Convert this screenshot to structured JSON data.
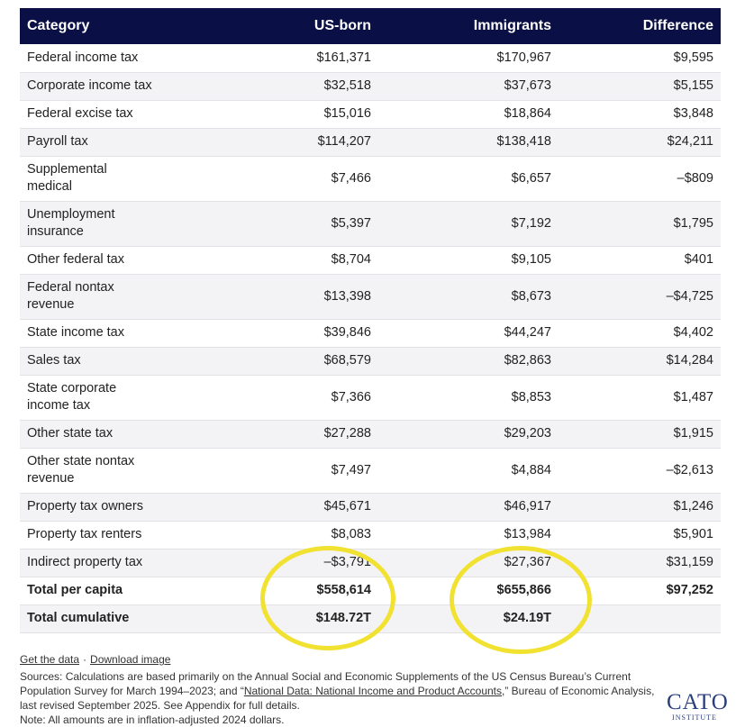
{
  "table": {
    "headers": [
      "Category",
      "US-born",
      "Immigrants",
      "Difference"
    ],
    "rows": [
      {
        "category": "Federal income tax",
        "us_born": "$161,371",
        "immigrants": "$170,967",
        "difference": "$9,595"
      },
      {
        "category": "Corporate income tax",
        "us_born": "$32,518",
        "immigrants": "$37,673",
        "difference": "$5,155"
      },
      {
        "category": "Federal excise tax",
        "us_born": "$15,016",
        "immigrants": "$18,864",
        "difference": "$3,848"
      },
      {
        "category": "Payroll tax",
        "us_born": "$114,207",
        "immigrants": "$138,418",
        "difference": "$24,211"
      },
      {
        "category": "Supplemental medical",
        "us_born": "$7,466",
        "immigrants": "$6,657",
        "difference": "–$809"
      },
      {
        "category": "Unemployment insurance",
        "us_born": "$5,397",
        "immigrants": "$7,192",
        "difference": "$1,795"
      },
      {
        "category": "Other federal tax",
        "us_born": "$8,704",
        "immigrants": "$9,105",
        "difference": "$401"
      },
      {
        "category": "Federal nontax revenue",
        "us_born": "$13,398",
        "immigrants": "$8,673",
        "difference": "–$4,725"
      },
      {
        "category": "State income tax",
        "us_born": "$39,846",
        "immigrants": "$44,247",
        "difference": "$4,402"
      },
      {
        "category": "Sales tax",
        "us_born": "$68,579",
        "immigrants": "$82,863",
        "difference": "$14,284"
      },
      {
        "category": "State corporate income tax",
        "us_born": "$7,366",
        "immigrants": "$8,853",
        "difference": "$1,487"
      },
      {
        "category": "Other state tax",
        "us_born": "$27,288",
        "immigrants": "$29,203",
        "difference": "$1,915"
      },
      {
        "category": "Other state nontax revenue",
        "us_born": "$7,497",
        "immigrants": "$4,884",
        "difference": "–$2,613"
      },
      {
        "category": "Property tax owners",
        "us_born": "$45,671",
        "immigrants": "$46,917",
        "difference": "$1,246"
      },
      {
        "category": "Property tax renters",
        "us_born": "$8,083",
        "immigrants": "$13,984",
        "difference": "$5,901"
      },
      {
        "category": "Indirect property tax",
        "us_born": "–$3,791",
        "immigrants": "$27,367",
        "difference": "$31,159"
      }
    ],
    "totals": [
      {
        "category": "Total per capita",
        "us_born": "$558,614",
        "immigrants": "$655,866",
        "difference": "$97,252"
      },
      {
        "category": "Total cumulative",
        "us_born": "$148.72T",
        "immigrants": "$24.19T",
        "difference": ""
      }
    ]
  },
  "footer": {
    "get_data": "Get the data",
    "separator": "·",
    "download": "Download image",
    "sources_a": "Sources: Calculations are based primarily on the Annual Social and Economic Supplements of the US Census Bureau’s Current Population Survey for March 1994–2023; and “",
    "sources_link": "National Data: National Income and Product Accounts",
    "sources_b": ",” Bureau of Economic Analysis, last revised September 2025. See Appendix for full details.",
    "note": "Note: All amounts are in inflation-adjusted 2024 dollars."
  },
  "logo": {
    "word": "CATO",
    "sub": "INSTITUTE"
  },
  "colors": {
    "header_bg": "#0a1045",
    "highlight": "#f1e232"
  }
}
